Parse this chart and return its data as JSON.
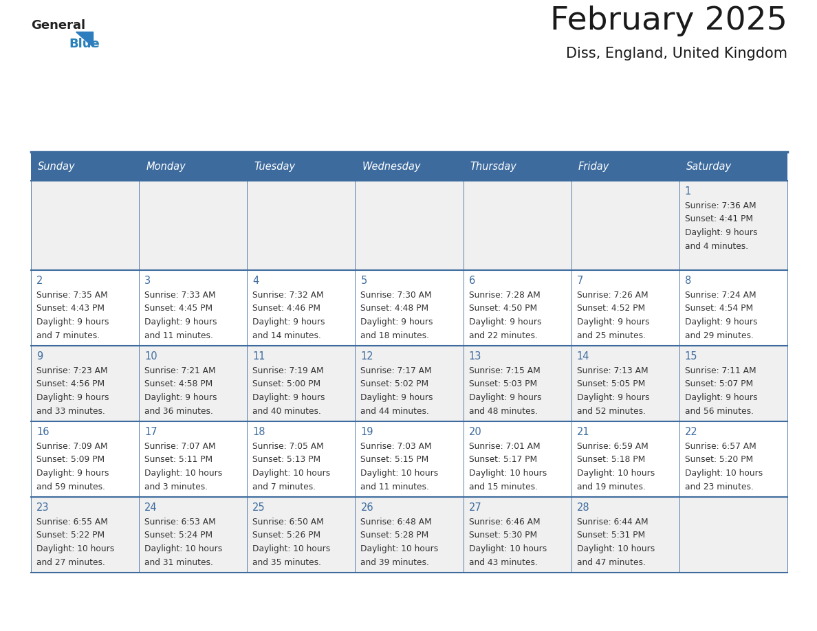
{
  "title": "February 2025",
  "subtitle": "Diss, England, United Kingdom",
  "days_of_week": [
    "Sunday",
    "Monday",
    "Tuesday",
    "Wednesday",
    "Thursday",
    "Friday",
    "Saturday"
  ],
  "header_bg": "#3d6b9e",
  "header_text_color": "#ffffff",
  "cell_bg_odd": "#f0f0f0",
  "cell_bg_even": "#ffffff",
  "cell_border_color": "#3d6b9e",
  "title_color": "#1a1a1a",
  "subtitle_color": "#1a1a1a",
  "day_number_color": "#3d6b9e",
  "info_text_color": "#333333",
  "logo_text_color": "#1a1a1a",
  "logo_blue_color": "#2980b9",
  "calendar_data": [
    [
      null,
      null,
      null,
      null,
      null,
      null,
      {
        "day": 1,
        "sunrise": "7:36 AM",
        "sunset": "4:41 PM",
        "daylight": "9 hours",
        "daylight2": "and 4 minutes."
      }
    ],
    [
      {
        "day": 2,
        "sunrise": "7:35 AM",
        "sunset": "4:43 PM",
        "daylight": "9 hours",
        "daylight2": "and 7 minutes."
      },
      {
        "day": 3,
        "sunrise": "7:33 AM",
        "sunset": "4:45 PM",
        "daylight": "9 hours",
        "daylight2": "and 11 minutes."
      },
      {
        "day": 4,
        "sunrise": "7:32 AM",
        "sunset": "4:46 PM",
        "daylight": "9 hours",
        "daylight2": "and 14 minutes."
      },
      {
        "day": 5,
        "sunrise": "7:30 AM",
        "sunset": "4:48 PM",
        "daylight": "9 hours",
        "daylight2": "and 18 minutes."
      },
      {
        "day": 6,
        "sunrise": "7:28 AM",
        "sunset": "4:50 PM",
        "daylight": "9 hours",
        "daylight2": "and 22 minutes."
      },
      {
        "day": 7,
        "sunrise": "7:26 AM",
        "sunset": "4:52 PM",
        "daylight": "9 hours",
        "daylight2": "and 25 minutes."
      },
      {
        "day": 8,
        "sunrise": "7:24 AM",
        "sunset": "4:54 PM",
        "daylight": "9 hours",
        "daylight2": "and 29 minutes."
      }
    ],
    [
      {
        "day": 9,
        "sunrise": "7:23 AM",
        "sunset": "4:56 PM",
        "daylight": "9 hours",
        "daylight2": "and 33 minutes."
      },
      {
        "day": 10,
        "sunrise": "7:21 AM",
        "sunset": "4:58 PM",
        "daylight": "9 hours",
        "daylight2": "and 36 minutes."
      },
      {
        "day": 11,
        "sunrise": "7:19 AM",
        "sunset": "5:00 PM",
        "daylight": "9 hours",
        "daylight2": "and 40 minutes."
      },
      {
        "day": 12,
        "sunrise": "7:17 AM",
        "sunset": "5:02 PM",
        "daylight": "9 hours",
        "daylight2": "and 44 minutes."
      },
      {
        "day": 13,
        "sunrise": "7:15 AM",
        "sunset": "5:03 PM",
        "daylight": "9 hours",
        "daylight2": "and 48 minutes."
      },
      {
        "day": 14,
        "sunrise": "7:13 AM",
        "sunset": "5:05 PM",
        "daylight": "9 hours",
        "daylight2": "and 52 minutes."
      },
      {
        "day": 15,
        "sunrise": "7:11 AM",
        "sunset": "5:07 PM",
        "daylight": "9 hours",
        "daylight2": "and 56 minutes."
      }
    ],
    [
      {
        "day": 16,
        "sunrise": "7:09 AM",
        "sunset": "5:09 PM",
        "daylight": "9 hours",
        "daylight2": "and 59 minutes."
      },
      {
        "day": 17,
        "sunrise": "7:07 AM",
        "sunset": "5:11 PM",
        "daylight": "10 hours",
        "daylight2": "and 3 minutes."
      },
      {
        "day": 18,
        "sunrise": "7:05 AM",
        "sunset": "5:13 PM",
        "daylight": "10 hours",
        "daylight2": "and 7 minutes."
      },
      {
        "day": 19,
        "sunrise": "7:03 AM",
        "sunset": "5:15 PM",
        "daylight": "10 hours",
        "daylight2": "and 11 minutes."
      },
      {
        "day": 20,
        "sunrise": "7:01 AM",
        "sunset": "5:17 PM",
        "daylight": "10 hours",
        "daylight2": "and 15 minutes."
      },
      {
        "day": 21,
        "sunrise": "6:59 AM",
        "sunset": "5:18 PM",
        "daylight": "10 hours",
        "daylight2": "and 19 minutes."
      },
      {
        "day": 22,
        "sunrise": "6:57 AM",
        "sunset": "5:20 PM",
        "daylight": "10 hours",
        "daylight2": "and 23 minutes."
      }
    ],
    [
      {
        "day": 23,
        "sunrise": "6:55 AM",
        "sunset": "5:22 PM",
        "daylight": "10 hours",
        "daylight2": "and 27 minutes."
      },
      {
        "day": 24,
        "sunrise": "6:53 AM",
        "sunset": "5:24 PM",
        "daylight": "10 hours",
        "daylight2": "and 31 minutes."
      },
      {
        "day": 25,
        "sunrise": "6:50 AM",
        "sunset": "5:26 PM",
        "daylight": "10 hours",
        "daylight2": "and 35 minutes."
      },
      {
        "day": 26,
        "sunrise": "6:48 AM",
        "sunset": "5:28 PM",
        "daylight": "10 hours",
        "daylight2": "and 39 minutes."
      },
      {
        "day": 27,
        "sunrise": "6:46 AM",
        "sunset": "5:30 PM",
        "daylight": "10 hours",
        "daylight2": "and 43 minutes."
      },
      {
        "day": 28,
        "sunrise": "6:44 AM",
        "sunset": "5:31 PM",
        "daylight": "10 hours",
        "daylight2": "and 47 minutes."
      },
      null
    ]
  ]
}
